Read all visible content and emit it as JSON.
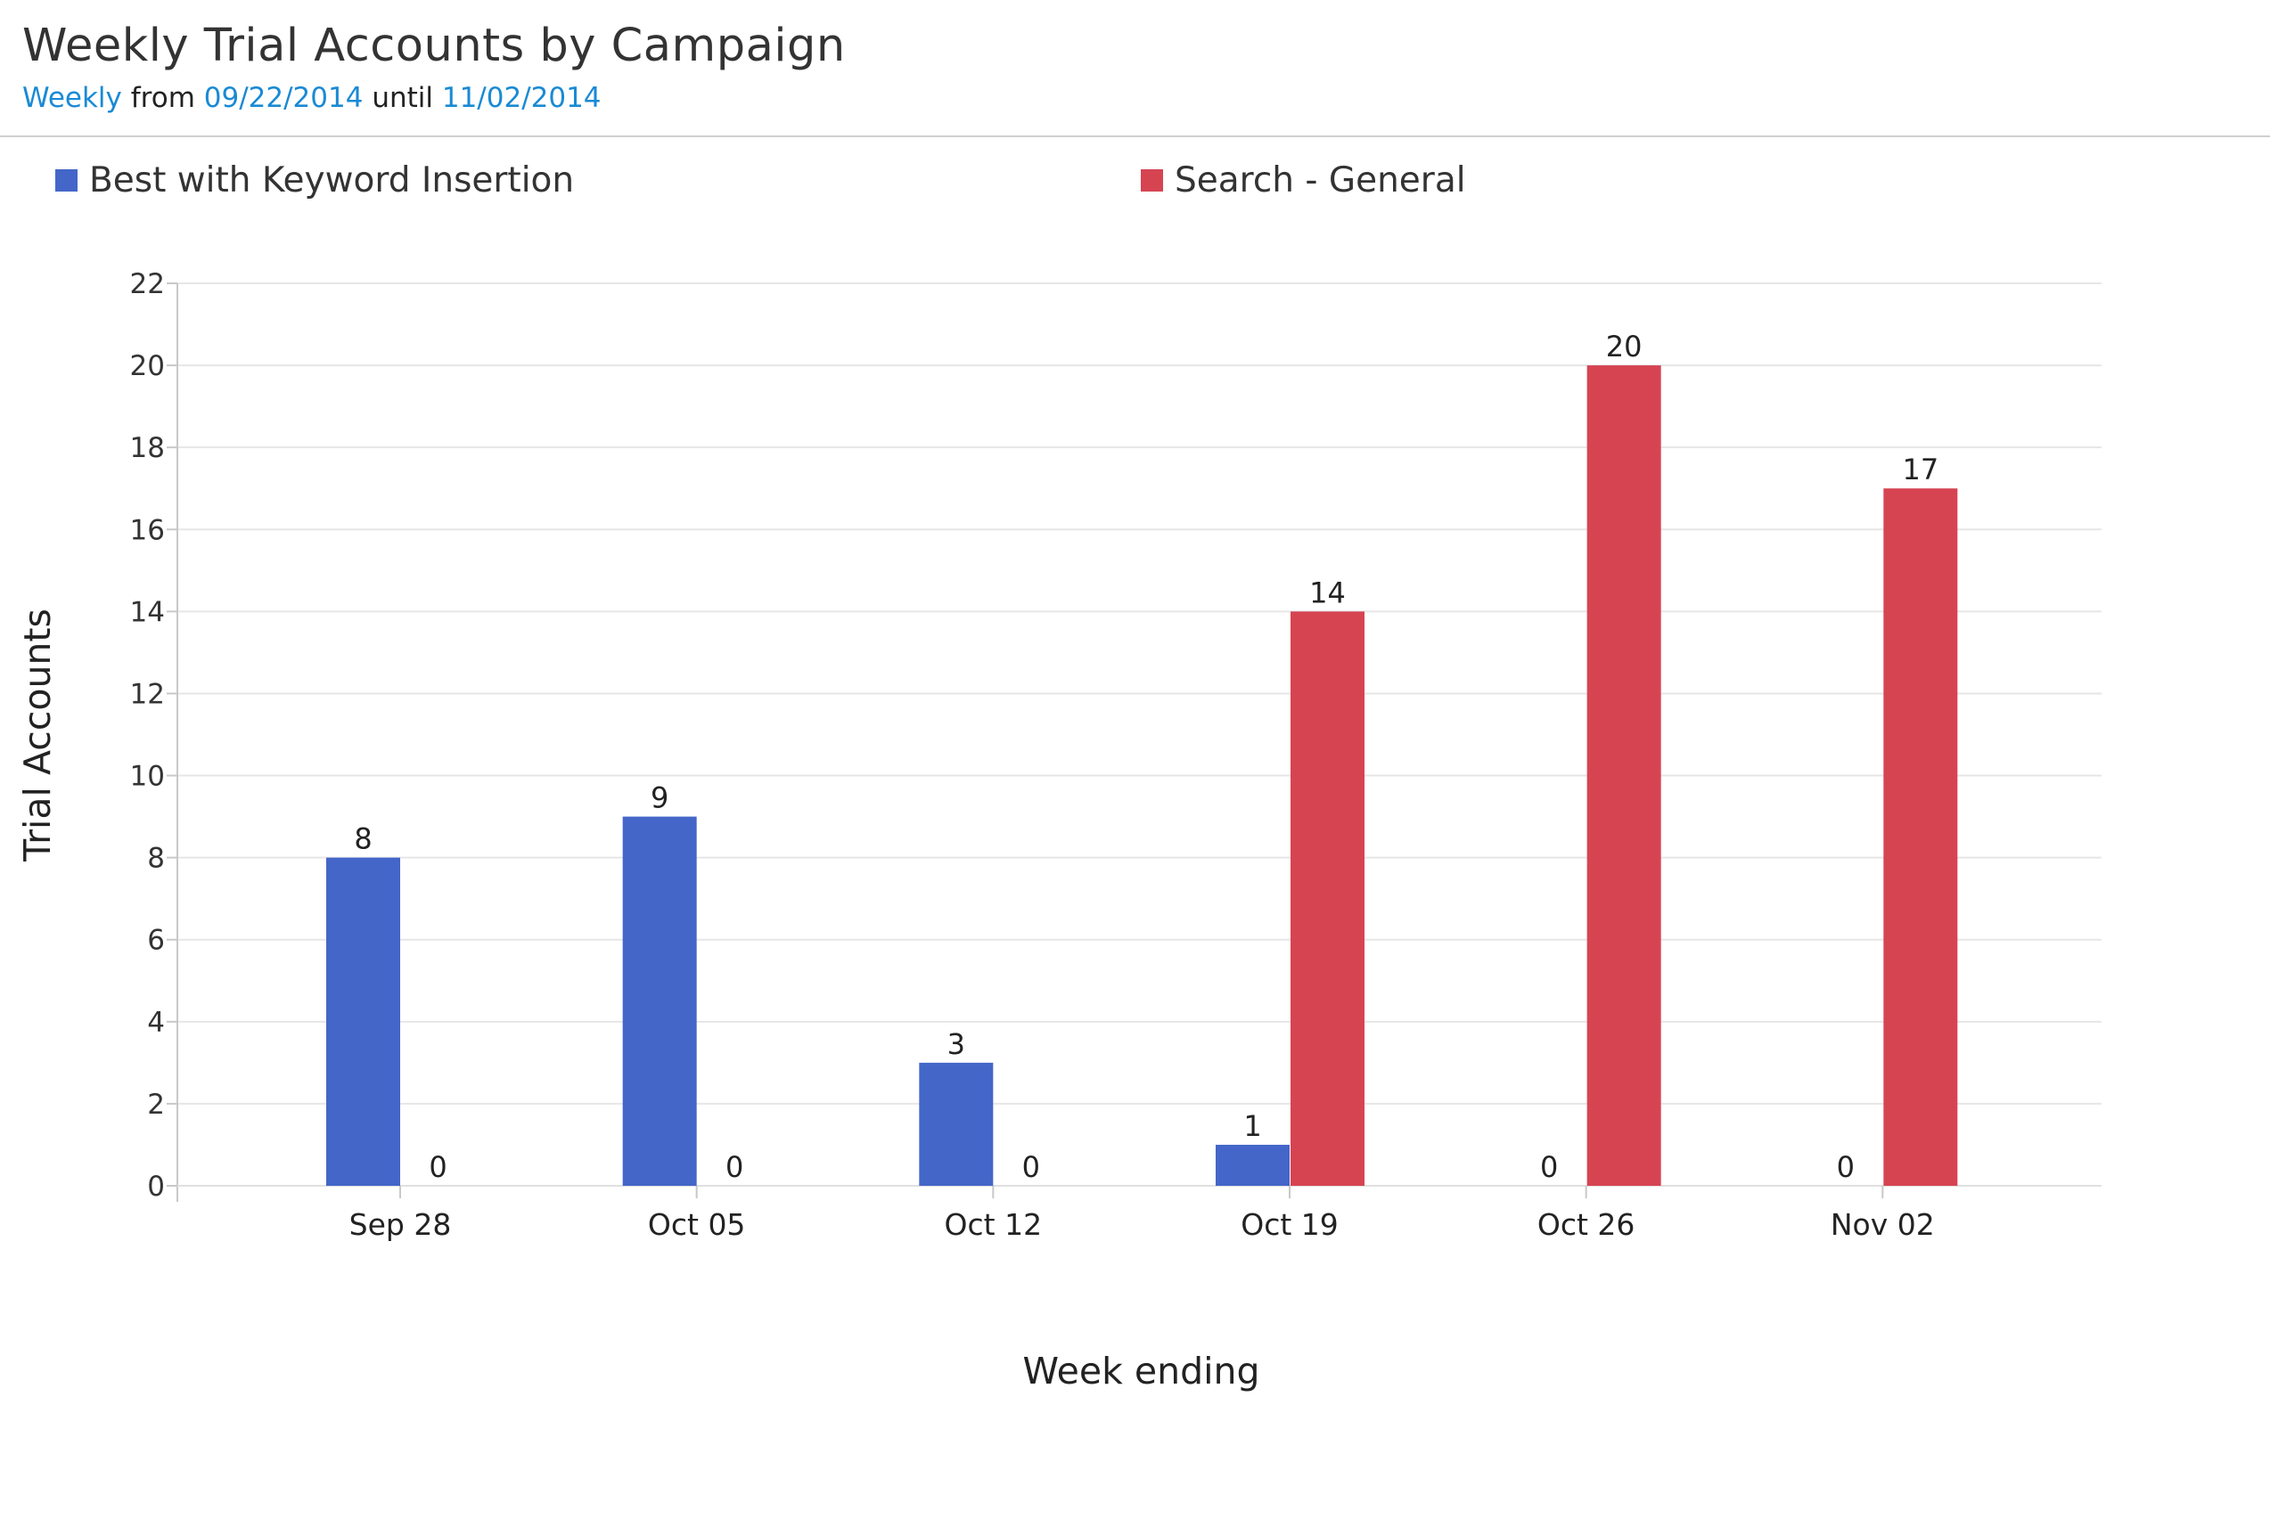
{
  "header": {
    "title": "Weekly Trial Accounts by Campaign",
    "subtitle_interval": "Weekly",
    "subtitle_from": "from",
    "subtitle_start": "09/22/2014",
    "subtitle_until": "until",
    "subtitle_end": "11/02/2014",
    "link_color": "#1a8ad4"
  },
  "chart_data": {
    "type": "bar",
    "title": "Weekly Trial Accounts by Campaign",
    "xlabel": "Week ending",
    "ylabel": "Trial Accounts",
    "categories": [
      "Sep 28",
      "Oct 05",
      "Oct 12",
      "Oct 19",
      "Oct 26",
      "Nov 02"
    ],
    "series": [
      {
        "name": "Best with Keyword Insertion",
        "color": "#4466c8",
        "values": [
          8,
          9,
          3,
          1,
          0,
          0
        ]
      },
      {
        "name": "Search - General",
        "color": "#d64452",
        "values": [
          0,
          0,
          0,
          14,
          20,
          17
        ]
      }
    ],
    "ylim": [
      0,
      22
    ],
    "yticks": [
      0,
      2,
      4,
      6,
      8,
      10,
      12,
      14,
      16,
      18,
      20,
      22
    ],
    "grid": true,
    "legend_position": "top",
    "data_labels": true
  }
}
